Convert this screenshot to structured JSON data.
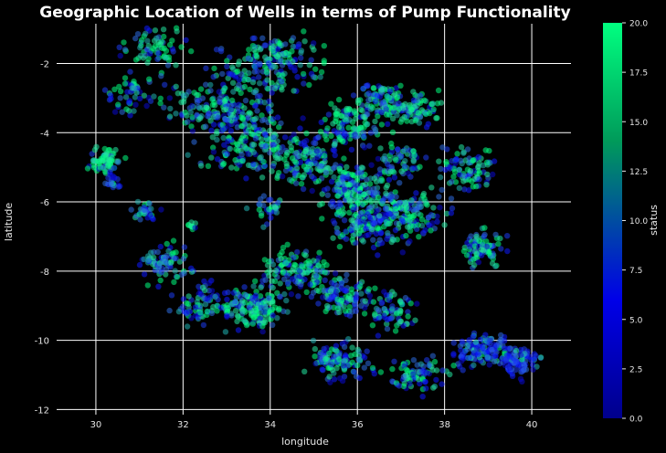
{
  "chart_data": {
    "type": "scatter",
    "title": "Geographic Location of Wells in terms of Pump Functionality",
    "xlabel": "longitude",
    "ylabel": "latitude",
    "xlim": [
      29.1,
      40.9
    ],
    "ylim": [
      -12.15,
      -0.85
    ],
    "xticks": [
      30,
      32,
      34,
      36,
      38,
      40
    ],
    "yticks": [
      -2,
      -4,
      -6,
      -8,
      -10,
      -12
    ],
    "grid": true,
    "colorbar": {
      "label": "status",
      "range": [
        0,
        20
      ],
      "ticks": [
        "0.0",
        "2.5",
        "5.0",
        "7.5",
        "10.0",
        "12.5",
        "15.0",
        "17.5",
        "20.0"
      ],
      "colors": [
        "#00008c",
        "#0000e8",
        "#009a5a",
        "#00ff80"
      ]
    },
    "point_colors": [
      "#0d1aff",
      "#1c3cf0",
      "#2b6be0",
      "#1fb0b0",
      "#22e6a0",
      "#00ff80",
      "#0a0acc"
    ],
    "clusters": [
      [
        31.3,
        -1.6,
        0.6,
        0.6,
        70,
        0.55
      ],
      [
        30.8,
        -2.9,
        0.4,
        0.5,
        50,
        0.5
      ],
      [
        32.8,
        -3.3,
        1.1,
        0.6,
        160,
        0.5
      ],
      [
        33.7,
        -2.3,
        1.2,
        0.6,
        110,
        0.45
      ],
      [
        34.3,
        -1.7,
        0.7,
        0.5,
        90,
        0.55
      ],
      [
        33.5,
        -4.3,
        1.0,
        0.8,
        180,
        0.5
      ],
      [
        35.0,
        -4.7,
        0.7,
        0.8,
        150,
        0.45
      ],
      [
        35.8,
        -3.8,
        0.5,
        0.6,
        100,
        0.6
      ],
      [
        36.6,
        -3.1,
        0.5,
        0.6,
        90,
        0.6
      ],
      [
        37.3,
        -3.3,
        0.6,
        0.4,
        90,
        0.55
      ],
      [
        38.5,
        -5.0,
        0.6,
        0.6,
        90,
        0.5
      ],
      [
        36.0,
        -5.6,
        0.7,
        0.6,
        160,
        0.45
      ],
      [
        36.2,
        -6.6,
        0.8,
        0.6,
        170,
        0.45
      ],
      [
        37.3,
        -6.3,
        0.7,
        0.6,
        120,
        0.45
      ],
      [
        38.9,
        -7.3,
        0.5,
        0.5,
        80,
        0.45
      ],
      [
        30.2,
        -4.8,
        0.3,
        0.3,
        70,
        0.8
      ],
      [
        30.4,
        -5.4,
        0.2,
        0.2,
        20,
        0.2
      ],
      [
        31.2,
        -6.3,
        0.3,
        0.3,
        30,
        0.3
      ],
      [
        31.6,
        -7.8,
        0.5,
        0.5,
        80,
        0.35
      ],
      [
        32.5,
        -8.9,
        0.6,
        0.5,
        80,
        0.35
      ],
      [
        33.6,
        -9.1,
        0.6,
        0.5,
        150,
        0.65
      ],
      [
        34.6,
        -8.0,
        0.7,
        0.6,
        140,
        0.6
      ],
      [
        35.7,
        -8.7,
        0.6,
        0.5,
        110,
        0.45
      ],
      [
        35.6,
        -10.6,
        0.7,
        0.5,
        110,
        0.4
      ],
      [
        36.8,
        -9.2,
        0.5,
        0.5,
        70,
        0.4
      ],
      [
        37.3,
        -11.0,
        0.6,
        0.4,
        80,
        0.45
      ],
      [
        38.8,
        -10.3,
        0.6,
        0.4,
        130,
        0.15
      ],
      [
        39.7,
        -10.6,
        0.4,
        0.4,
        90,
        0.1
      ],
      [
        32.2,
        -6.7,
        0.1,
        0.1,
        10,
        0.9
      ],
      [
        34.0,
        -6.2,
        0.4,
        0.4,
        30,
        0.4
      ],
      [
        37.0,
        -4.8,
        0.5,
        0.5,
        60,
        0.4
      ]
    ]
  }
}
